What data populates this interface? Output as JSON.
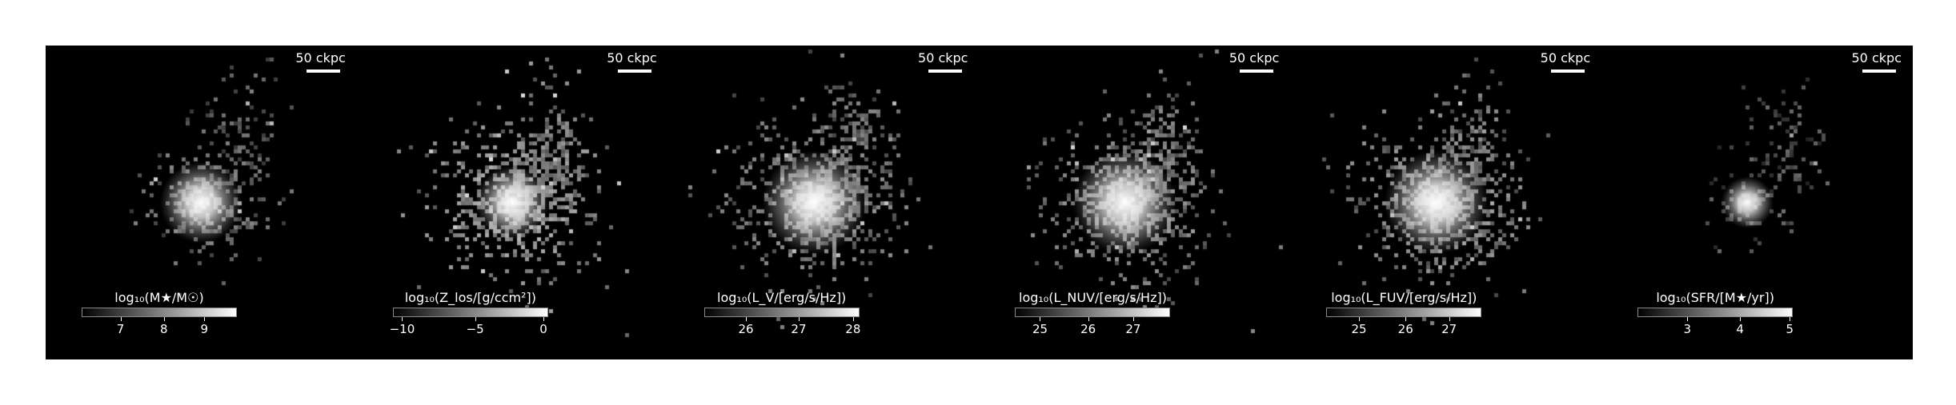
{
  "panels": [
    {
      "scale_label": "50 ckpc",
      "colorbar": {
        "title": "log₁₀(M★/M☉)",
        "ticks": [
          "7",
          "8",
          "9"
        ],
        "tick_positions": [
          0.25,
          0.53,
          0.79
        ]
      },
      "image": {
        "center": [
          0.5,
          0.5
        ],
        "spread": 0.16,
        "core": 0.055,
        "fill": 0.45,
        "floor": 0.25
      }
    },
    {
      "scale_label": "50 ckpc",
      "colorbar": {
        "title": "log₁₀(Z_los/[g/ccm²])",
        "ticks": [
          "−10",
          "−5",
          "0"
        ],
        "tick_positions": [
          0.06,
          0.53,
          0.97
        ]
      },
      "image": {
        "center": [
          0.5,
          0.5
        ],
        "spread": 0.22,
        "core": 0.05,
        "fill": 0.65,
        "floor": 0.38
      }
    },
    {
      "scale_label": "50 ckpc",
      "colorbar": {
        "title": "log₁₀(L_V/[erg/s/Hz])",
        "ticks": [
          "26",
          "27",
          "28"
        ],
        "tick_positions": [
          0.27,
          0.61,
          0.96
        ]
      },
      "image": {
        "center": [
          0.47,
          0.5
        ],
        "spread": 0.22,
        "core": 0.07,
        "fill": 0.6,
        "floor": 0.3
      }
    },
    {
      "scale_label": "50 ckpc",
      "colorbar": {
        "title": "log₁₀(L_NUV/[erg/s/Hz])",
        "ticks": [
          "25",
          "26",
          "27"
        ],
        "tick_positions": [
          0.16,
          0.47,
          0.76
        ]
      },
      "image": {
        "center": [
          0.47,
          0.5
        ],
        "spread": 0.23,
        "core": 0.07,
        "fill": 0.62,
        "floor": 0.3
      }
    },
    {
      "scale_label": "50 ckpc",
      "colorbar": {
        "title": "log₁₀(L_FUV/[erg/s/Hz])",
        "ticks": [
          "25",
          "26",
          "27"
        ],
        "tick_positions": [
          0.21,
          0.51,
          0.79
        ]
      },
      "image": {
        "center": [
          0.47,
          0.5
        ],
        "spread": 0.23,
        "core": 0.07,
        "fill": 0.62,
        "floor": 0.32
      }
    },
    {
      "scale_label": "50 ckpc",
      "colorbar": {
        "title": "log₁₀(SFR/[M★/yr])",
        "ticks": [
          "3",
          "4",
          "5"
        ],
        "tick_positions": [
          0.32,
          0.66,
          0.98
        ]
      },
      "image": {
        "center": [
          0.47,
          0.5
        ],
        "spread": 0.11,
        "core": 0.035,
        "fill": 0.35,
        "floor": 0.15
      }
    }
  ]
}
